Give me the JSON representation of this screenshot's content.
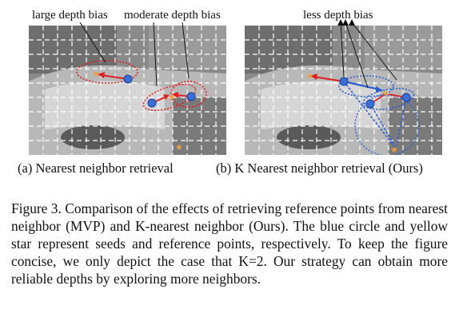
{
  "labels": {
    "large_bias": "large depth bias",
    "moderate_bias": "moderate depth bias",
    "less_bias": "less depth bias"
  },
  "subcaptions": {
    "a": "(a) Nearest neighbor retrieval",
    "b": "(b) K Nearest neighbor retrieval (Ours)"
  },
  "caption": "Figure 3. Comparison of the effects of retrieving reference points from nearest neighbor (MVP) and K-nearest neighbor (Ours). The blue circle and yellow star represent seeds and reference points, respectively. To keep the figure concise, we only depict the case that K=2. Our strategy can obtain more reliable depths by exploring more neighbors.",
  "colors": {
    "seed": "#3a6fd8",
    "reference": "#f0a040",
    "nn_link": "#e02020",
    "knn_link": "#2a5fd0"
  }
}
